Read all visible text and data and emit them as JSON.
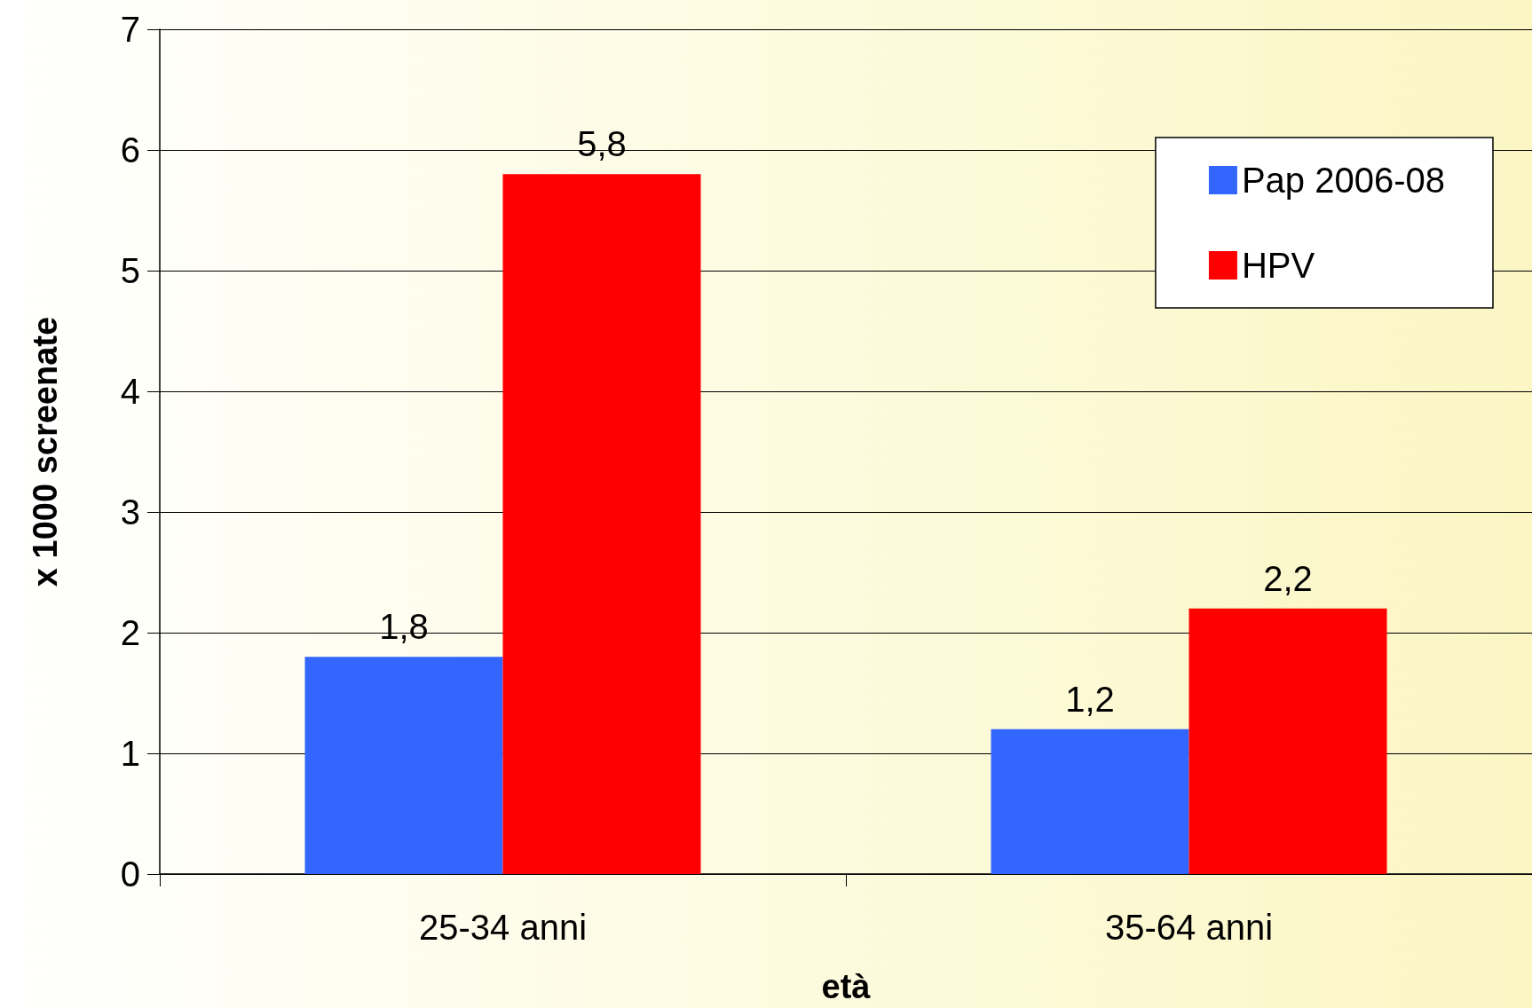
{
  "chart_data": {
    "type": "bar",
    "xlabel": "età",
    "ylabel": "x 1000 screenate",
    "categories": [
      "25-34 anni",
      "35-64 anni"
    ],
    "series": [
      {
        "name": "Pap 2006-08",
        "color": "#3366ff",
        "values": [
          1.8,
          1.2
        ],
        "value_labels": [
          "1,8",
          "1,2"
        ]
      },
      {
        "name": "HPV",
        "color": "#ff0000",
        "values": [
          5.8,
          2.2
        ],
        "value_labels": [
          "5,8",
          "2,2"
        ]
      }
    ],
    "ylim": [
      0,
      7
    ],
    "yticks": [
      0,
      1,
      2,
      3,
      4,
      5,
      6,
      7
    ],
    "grid": "y",
    "legend": "top right"
  }
}
